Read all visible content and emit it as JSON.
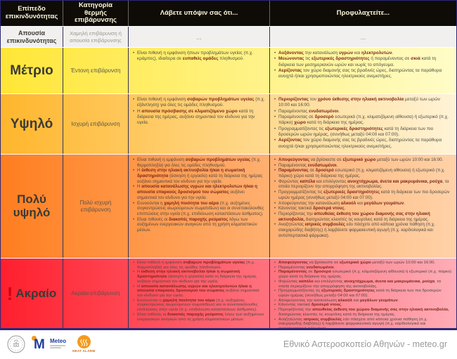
{
  "header": {
    "columns": [
      "Επίπεδο επικινδυνότητας",
      "Κατηγορία θερμής επιβάρυνσης",
      "Λάβετε υπόψιν σας ότι...",
      "Προφυλαχτείτε..."
    ]
  },
  "rows": [
    {
      "level": "Απουσία επικινδυνότητας",
      "category": "Χαμηλή επιβάρυνση ή απουσία επιβάρυνσης",
      "consider_text": "...",
      "protect_text": "..."
    },
    {
      "level": "Μέτριο",
      "category": "Έντονη επιβάρυνση",
      "consider": [
        "Είναι πιθανή η εμφάνιση ήπιων προβλημάτων υγείας (π.χ. κράμπες), ιδιαίτερα σε **ευπαθείς ομάδες** πληθυσμού."
      ],
      "protect": [
        "**Αυξάνοντας** την κατανάλωση **υγρών** και **ηλεκτρολυτών**.",
        "**Μειώνοντας** τις **εξωτερικές δραστηριότητες** ή παραμένοντας σε **σκιά** κατά τη διάρκεια των μεσημεριανών ωρών και νωρίς το απόγευμα.",
        "**Αερίζοντας** τον χώρο διαμονής σας τις βραδινές ώρες, διατηρώντας τα παράθυρα ανοιχτά ή/και χρησιμοποιώντας ηλεκτρικούς ανεμιστήρες."
      ]
    },
    {
      "level": "Υψηλό",
      "category": "Ισχυρή επιβάρυνση",
      "consider": [
        "Είναι πιθανή η εμφάνιση **σοβαρών προβλημάτων υγείας** (π.χ. εξάντληση) για όλες τις ομάδες πληθυσμού.",
        "Η **απουσία πρόσβασης σε κλιματιζόμενο χώρο** κατά τη διάρκεια της ημέρας, αυξάνει σημαντικά τον κίνδυνο για την υγεία."
      ],
      "protect": [
        "**Περιορίζοντας** τον **χρόνο έκθεσης στην ηλιακή ακτινοβολία** μεταξύ των ωρών 10:00 και 16:00.",
        "Παραμένοντας **ενυδατωμένοι**.",
        "Παραμένοντας σε **δροσερό** εσωτερικό (π.χ. κλιματιζόμενη αίθουσα) ή εξωτερικό (π.χ. πάρκο) **χώρο** κατά τη διάρκεια της ημέρας.",
        "Προγραμματίζοντας τις **εξωτερικές δραστηριότητες** κατά τη διάρκεια των πιο δροσερών ωρών ημέρας, (συνήθως μεταξύ 04:00 και 07:00).",
        "**Αερίζοντας** τον χώρο διαμονής σας τις βραδινές ώρες, διατηρώντας τα παράθυρα ανοιχτά ή/και χρησιμοποιώντας ηλεκτρικούς ανεμιστήρες."
      ]
    },
    {
      "level": "Πολύ υψηλό",
      "category": "Πολύ ισχυρή επιβάρυνση",
      "consider": [
        "Είναι πιθανή η εμφάνιση **σοβαρών προβλημάτων υγείας** (π.χ. θερμοπληξία) για όλες τις ομάδες πληθυσμού.",
        "Η **έκθεση στην ηλιακή ακτινοβολία ή/και η σωματική δραστηριότητα** (άσκηση ή εργασία) κατά τη διάρκεια της ημέρας αυξάνει σημαντικά τον κίνδυνο για την υγεία.",
        "Η **απουσία κατανάλωσης υγρών και ηλεκτρολυτών ή/και η απουσία επαρκούς δροσισμού του σώματος** αυξάνει σημαντικά τον κίνδυνο για την υγεία.",
        "Ευνοούνται η **χαμηλή ποιότητα του αέρα** (π.χ. αυξημένες συγκεντρώσεις αιωρούμενων σωματιδίων) και οι συνεπακόλουθες επιπτώσεις στην υγεία (π.χ. επιδείνωση καταστάσεων άσθματος).",
        "Είναι πιθανές οι **διακοπές παροχής ρεύματος** λόγω των αυξημένων ενεργειακών αναγκών από τη χρήση κλιματιστικών μέσων."
      ],
      "protect": [
        "**Αποφεύγοντας** να βρίσκεστε σε **εξωτερικό χώρο** μεταξύ των ωρών 10:00 και 16:00.",
        "Παραμένοντας **ενυδατωμένοι**.",
        "**Παραμένοντας** σε **δροσερό** εσωτερικό (π.χ. κλιματιζόμενη αίθουσα) ή εξωτερικό (π.χ. πάρκο) χώρο κατά τη διάρκεια της ημέρας.",
        "Φορώντας **καπέλα** και επιλέγοντας **ανοιχτόχρωμα, άνετα και μακρυμάνικα, ρούχα**, τα οποία περιορίζουν την απορρόφηση της ακτινοβολίας.",
        "Προγραμματίζοντας τις **εξωτερικές δραστηριότητες** κατά τη διάρκεια των πιο δροσερών ωρών ημέρας (συνήθως μεταξύ 04:00 και 07:00).",
        "Αποφεύγοντας την κατανάλωση **αλκοόλ** και **μεγάλων γευμάτων**.",
        "Κάνοντας τακτικά **δροσερά ντους**.",
        "Περιορίζοντας την **απευθείας έκθεση του χώρου διαμονής σας στην ηλιακή ακτινοβολία,** διατηρώντας κλειστές τις κουρτίνες κατά τη διάρκεια της ημέρας.",
        "Αναζητώντας **ιατρικές συμβουλές** εάν πάσχετε από κάποια χρόνια πάθηση (π.χ. σακχαρώδης διαβήτης) ή λαμβάνετε φαρμακευτική αγωγή (π.χ. καρδιολογικά και αντιϋπερτασικά φάρμακα)."
      ]
    },
    {
      "level": "Ακραίο",
      "exclaim": "!",
      "category": "Ακραία επιβάρυνση",
      "consider": [
        "Είναι πιθανή η εμφάνιση **σοβαρών προβλημάτων υγείας** (π.χ. θερμοπληξία) για όλες τις ομάδες πληθυσμού.",
        "Η **έκθεση στην ηλιακή ακτινοβολία ή/και η σωματική δραστηριότητα** (άσκηση ή εργασία) κατά τη διάρκεια της ημέρας αυξάνει σημαντικά τον κίνδυνο για την υγεία.",
        "Η **απουσία κατανάλωσης υγρών και ηλεκτρολυτών ή/και η απουσία επαρκούς δροσισμού του σώματος** αυξάνει σημαντικά τον κίνδυνο για την υγεία.",
        "Ευνοούνται η **χαμηλή ποιότητα του αέρα** (π.χ. αυξημένες συγκεντρώσεις αιωρούμενων σωματιδίων) και οι συνεπακόλουθες επιπτώσεις στην υγεία (π.χ. επιδείνωση καταστάσεων άσθματος).",
        "Είναι πιθανές οι **διακοπές παροχής ρεύματος** λόγω των αυξημένων ενεργειακών αναγκών από τη χρήση κλιματιστικών μέσων."
      ],
      "protect": [
        "**Αποφεύγοντας** να βρίσκεστε σε **εξωτερικό χώρο** μεταξύ των ωρών 10:00 και 16:00.",
        "Παραμένοντας **ενυδατωμένοι**.",
        "**Παραμένοντας** σε **δροσερό** εσωτερικό (π.χ. κλιματιζόμενη αίθουσα) ή εξωτερικό (π.χ. πάρκο) χώρο κατά τη διάρκεια της ημέρας.",
        "Φορώντας **καπέλο** και επιλέγοντας **ανοιχτόχρωμα, άνετα και μακρυμάνικα, ρούχα**, τα οποία περιορίζουν την απορρόφηση της ακτινοβολίας.",
        "Προγραμματίζοντας τις **εξωτερικές δραστηριότητες** κατά τη διάρκεια των πιο δροσερών ωρών ημέρας (συνήθως μεταξύ 04:00 και 07:00).",
        "Αποφεύγοντας την κατανάλωση **αλκοόλ** και **μεγάλων γευμάτων**.",
        "Κάνοντας τακτικά **δροσερά ντους**.",
        "Περιορίζοντας την **απευθείας έκθεση του χώρου διαμονής σας στην ηλιακή ακτινοβολία,** διατηρώντας κλειστές τις κουρτίνες κατά τη διάρκεια της ημέρας.",
        "Αναζητώντας **ιατρικές συμβουλές** εάν πάσχετε από κάποια χρόνια πάθηση (π.χ. σακχαρώδης διαβήτης) ή λαμβάνετε φαρμακευτική αγωγή (π.χ. καρδιολογικά και αντιϋπερτασικά φάρμακα)."
      ]
    }
  ],
  "footer": {
    "meteo_label": "Meteo",
    "heat_alarm_label": "HEAT ALARM",
    "credit": "Εθνικό Αστεροσκοπείο Αθηνών - meteo.gr"
  },
  "colors": {
    "header_bg": "#0f0c08",
    "header_text": "#fdf8dc",
    "row_none_bg": "#f1f0ee",
    "row_moderate_left": "#ffe636",
    "row_moderate_right": "#fffcc8",
    "row_high_left": "#ffb62c",
    "row_high_right": "#fff3d6",
    "row_veryhigh_left": "#ff7e20",
    "row_veryhigh_right": "#ffd2a8",
    "row_extreme_left": "#ff1f2d",
    "row_extreme_right": "#ffacb6",
    "bold_text": "#7c2718",
    "body_text": "#4b4a44",
    "table_border": "#2b2878",
    "accent_red": "#d40013",
    "meteo_blue": "#1f3e9e",
    "meteo_orange": "#f59a1e",
    "credit_gray": "#9a9a9a"
  }
}
